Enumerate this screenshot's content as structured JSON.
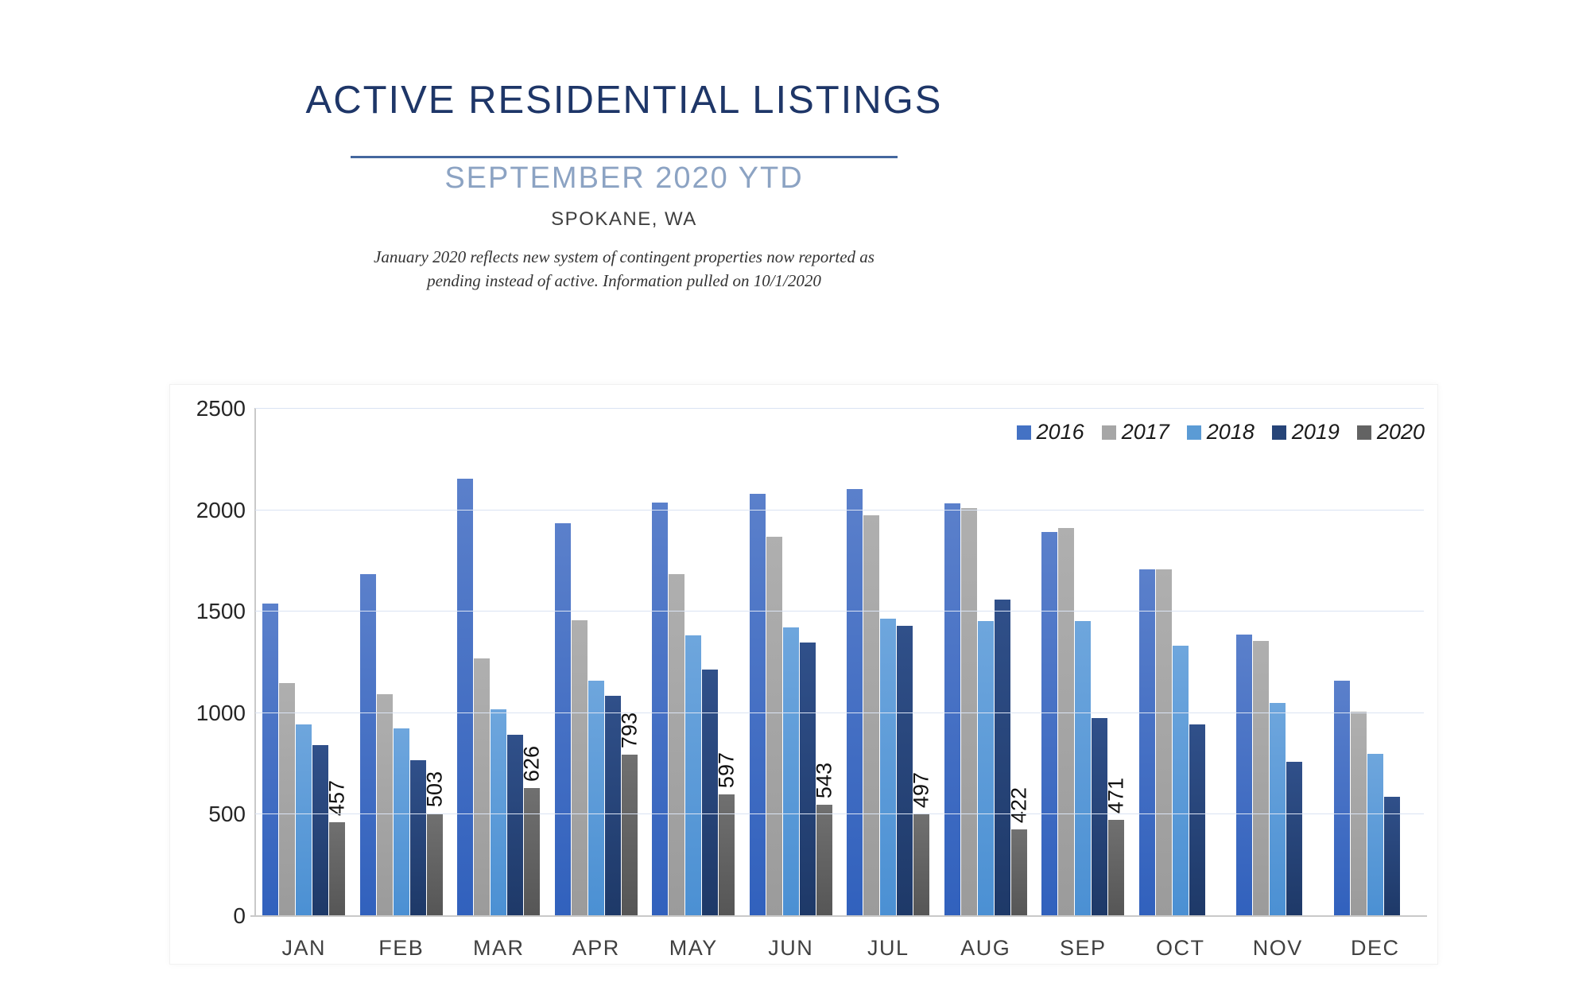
{
  "header": {
    "title": "ACTIVE RESIDENTIAL LISTINGS",
    "subtitle": "SEPTEMBER 2020 YTD",
    "location": "SPOKANE, WA",
    "note_line1": "January 2020 reflects new system of contingent properties now reported as",
    "note_line2": "pending instead of active.  Information pulled on 10/1/2020"
  },
  "chart_data": {
    "type": "bar",
    "title": "Active residential listings by month and year",
    "categories": [
      "JAN",
      "FEB",
      "MAR",
      "APR",
      "MAY",
      "JUN",
      "JUL",
      "AUG",
      "SEP",
      "OCT",
      "NOV",
      "DEC"
    ],
    "series": [
      {
        "name": "2016",
        "color": "#4472C4",
        "fill_top": "#5B80CB",
        "fill_bottom": "#3161BD",
        "values": [
          1535,
          1680,
          2150,
          1930,
          2035,
          2075,
          2100,
          2030,
          1890,
          1705,
          1385,
          1155
        ]
      },
      {
        "name": "2017",
        "color": "#A6A6A6",
        "fill_top": "#AFAFAF",
        "fill_bottom": "#9B9B9B",
        "values": [
          1145,
          1090,
          1265,
          1455,
          1680,
          1865,
          1970,
          2005,
          1910,
          1705,
          1350,
          1005
        ]
      },
      {
        "name": "2018",
        "color": "#5B9BD5",
        "fill_top": "#6EA6DD",
        "fill_bottom": "#4B90D3",
        "values": [
          940,
          920,
          1015,
          1155,
          1380,
          1420,
          1460,
          1450,
          1450,
          1330,
          1045,
          795
        ]
      },
      {
        "name": "2019",
        "color": "#264478",
        "fill_top": "#30508A",
        "fill_bottom": "#1E3968",
        "values": [
          840,
          765,
          890,
          1080,
          1210,
          1345,
          1425,
          1555,
          970,
          940,
          755,
          585
        ]
      },
      {
        "name": "2020",
        "color": "#636363",
        "fill_top": "#707070",
        "fill_bottom": "#565656",
        "values": [
          457,
          503,
          626,
          793,
          597,
          543,
          497,
          422,
          471,
          null,
          null,
          null
        ],
        "data_labels": true
      }
    ],
    "ylim": [
      0,
      2500
    ],
    "yticks": [
      0,
      500,
      1000,
      1500,
      2000,
      2500
    ],
    "grid": true,
    "legend_position": "top-right",
    "gridline_color": "#DAE3F3",
    "axis_color": "#C9C9C9"
  }
}
